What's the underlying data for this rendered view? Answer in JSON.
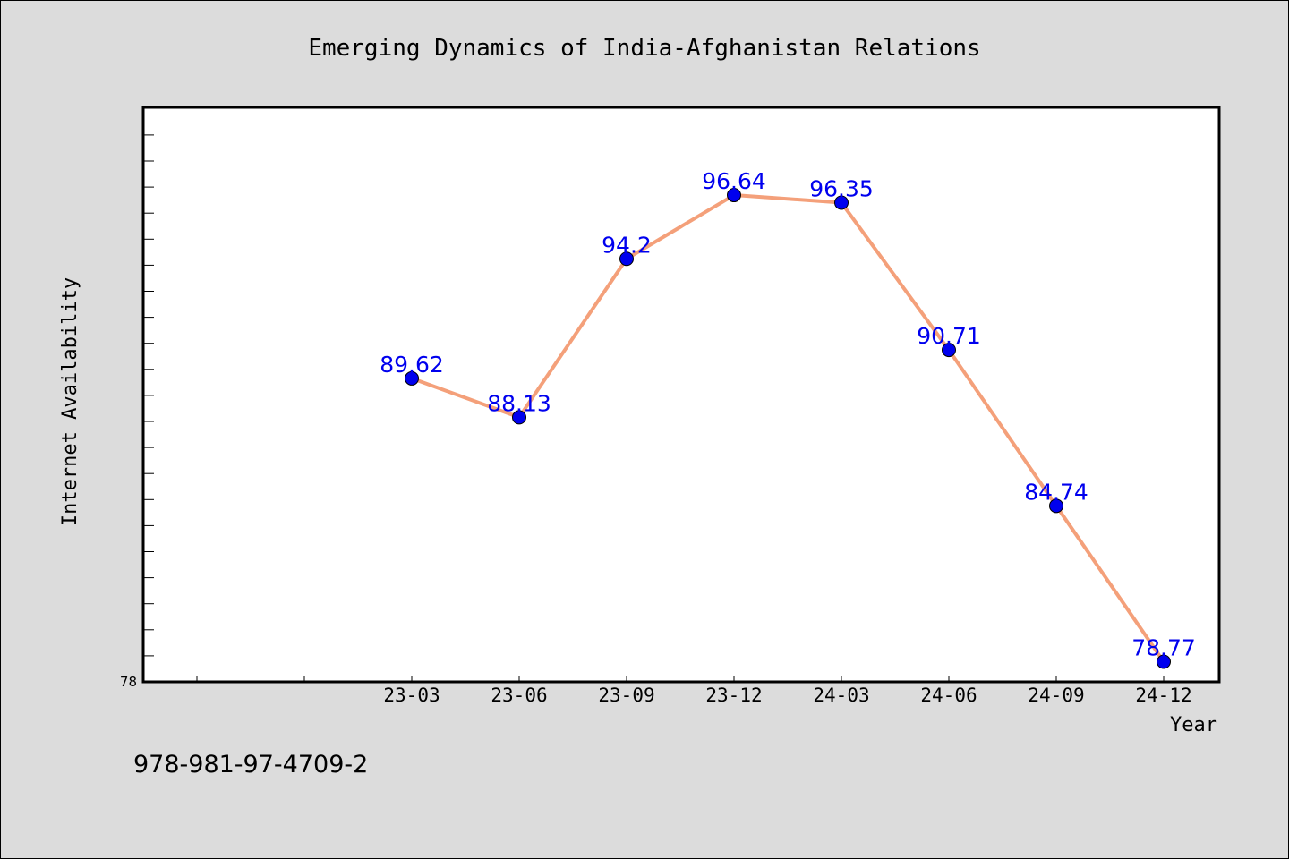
{
  "chart_data": {
    "type": "line",
    "title": "Emerging Dynamics of India-Afghanistan Relations",
    "xlabel": "Year",
    "ylabel": "Internet Availability",
    "categories": [
      "23-03",
      "23-06",
      "23-09",
      "23-12",
      "24-03",
      "24-06",
      "24-09",
      "24-12"
    ],
    "series": [
      {
        "values": [
          89.62,
          88.13,
          94.2,
          96.64,
          96.35,
          90.71,
          84.74,
          78.77
        ]
      }
    ],
    "data_labels": [
      "89.62",
      "88.13",
      "94.2",
      "96.64",
      "96.35",
      "90.71",
      "84.74",
      "78.77"
    ],
    "ylim": [
      78,
      100
    ],
    "y_tick_label": "78",
    "x_slots_before_first_category": 2,
    "grid": false,
    "legend": "none",
    "colors": {
      "line": "#f4a07a",
      "marker": "#0000ee",
      "data_label": "#0000ee",
      "plot_background": "#ffffff",
      "figure_background": "#dcdcdc"
    }
  },
  "footer": {
    "isbn": "978-981-97-4709-2"
  }
}
